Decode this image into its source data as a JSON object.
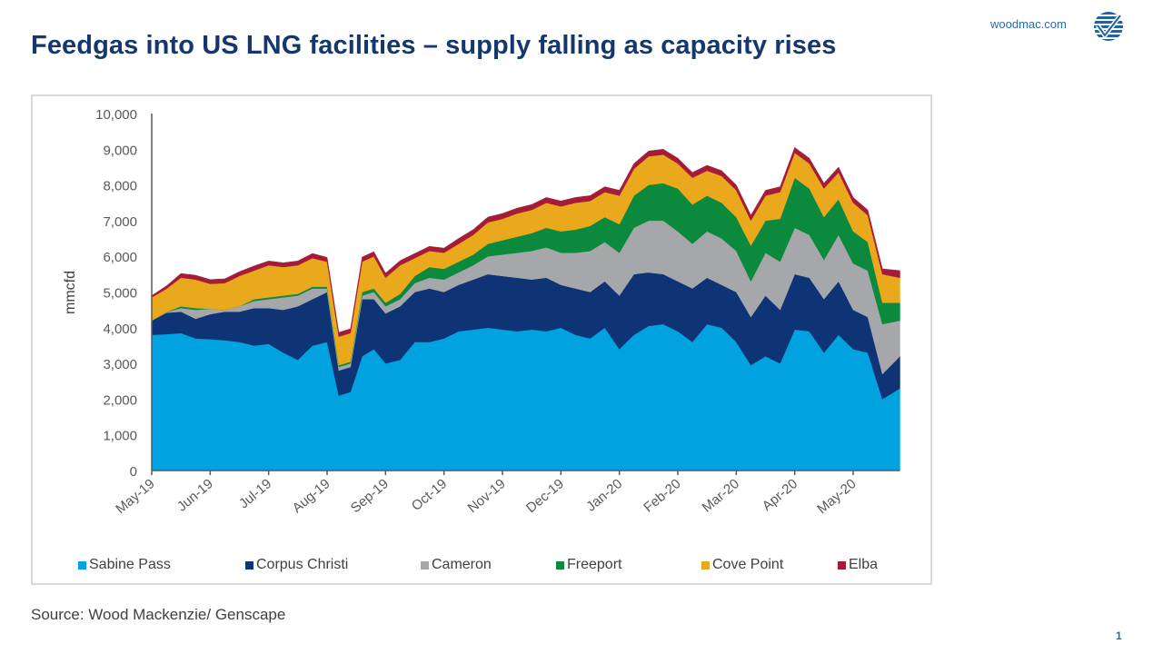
{
  "header": {
    "title": "Feedgas into US LNG facilities – supply falling as capacity rises",
    "site": "woodmac.com",
    "logo_icon": "woodmac-checkmark-logo"
  },
  "footer": {
    "source": "Source: Wood Mackenzie/ Genscape",
    "page_number": "1"
  },
  "chart_data": {
    "type": "area",
    "stacked": true,
    "title": "",
    "xlabel": "",
    "ylabel": "mmcfd",
    "ylim": [
      0,
      10000
    ],
    "yticks": [
      0,
      1000,
      2000,
      3000,
      4000,
      5000,
      6000,
      7000,
      8000,
      9000,
      10000
    ],
    "ytick_labels": [
      "0",
      "1,000",
      "2,000",
      "3,000",
      "4,000",
      "5,000",
      "6,000",
      "7,000",
      "8,000",
      "9,000",
      "10,000"
    ],
    "xtick_labels": [
      "May-19",
      "Jun-19",
      "Jul-19",
      "Aug-19",
      "Sep-19",
      "Oct-19",
      "Nov-19",
      "Dec-19",
      "Jan-20",
      "Feb-20",
      "Mar-20",
      "Apr-20",
      "May-20"
    ],
    "x_unit": "months since May-19",
    "xlim": [
      0,
      12.8
    ],
    "grid": false,
    "legend_position": "bottom",
    "x": [
      0,
      0.25,
      0.5,
      0.75,
      1.0,
      1.25,
      1.5,
      1.75,
      2.0,
      2.25,
      2.5,
      2.75,
      3.0,
      3.2,
      3.4,
      3.6,
      3.8,
      4.0,
      4.25,
      4.5,
      4.75,
      5.0,
      5.25,
      5.5,
      5.75,
      6.0,
      6.25,
      6.5,
      6.75,
      7.0,
      7.25,
      7.5,
      7.75,
      8.0,
      8.25,
      8.5,
      8.75,
      9.0,
      9.25,
      9.5,
      9.75,
      10.0,
      10.25,
      10.5,
      10.75,
      11.0,
      11.25,
      11.5,
      11.75,
      12.0,
      12.25,
      12.5,
      12.8
    ],
    "series": [
      {
        "name": "Sabine Pass",
        "color": "#00a3e0",
        "values": [
          3800,
          3820,
          3850,
          3700,
          3680,
          3650,
          3600,
          3500,
          3550,
          3300,
          3100,
          3500,
          3600,
          2100,
          2200,
          3200,
          3400,
          3000,
          3100,
          3600,
          3600,
          3700,
          3900,
          3950,
          4000,
          3950,
          3900,
          3950,
          3900,
          4000,
          3800,
          3700,
          4000,
          3400,
          3800,
          4050,
          4100,
          3900,
          3600,
          4100,
          4000,
          3600,
          2950,
          3200,
          3000,
          3950,
          3900,
          3300,
          3800,
          3400,
          3300,
          2000,
          2300
        ]
      },
      {
        "name": "Corpus Christi",
        "color": "#0f3475",
        "values": [
          400,
          600,
          600,
          550,
          700,
          800,
          850,
          1050,
          1000,
          1200,
          1500,
          1300,
          1400,
          700,
          700,
          1600,
          1400,
          1400,
          1500,
          1400,
          1500,
          1300,
          1300,
          1400,
          1500,
          1500,
          1500,
          1400,
          1500,
          1200,
          1300,
          1300,
          1300,
          1500,
          1700,
          1500,
          1400,
          1400,
          1500,
          1300,
          1200,
          1400,
          1350,
          1700,
          1500,
          1550,
          1500,
          1500,
          1500,
          1100,
          1000,
          700,
          900
        ]
      },
      {
        "name": "Cameron",
        "color": "#a6a7ab",
        "values": [
          0,
          20,
          100,
          250,
          150,
          50,
          150,
          200,
          250,
          350,
          300,
          300,
          100,
          100,
          100,
          100,
          200,
          200,
          200,
          250,
          300,
          350,
          350,
          400,
          500,
          600,
          700,
          800,
          850,
          900,
          1000,
          1150,
          1100,
          1200,
          1300,
          1450,
          1500,
          1400,
          1250,
          1300,
          1300,
          1150,
          1000,
          1200,
          1350,
          1300,
          1200,
          1100,
          1300,
          1300,
          1300,
          1400,
          1000
        ]
      },
      {
        "name": "Freeport",
        "color": "#0b8a3e",
        "values": [
          0,
          0,
          50,
          50,
          0,
          0,
          0,
          50,
          50,
          50,
          50,
          50,
          50,
          50,
          50,
          100,
          100,
          100,
          150,
          200,
          300,
          300,
          300,
          300,
          350,
          400,
          450,
          500,
          550,
          600,
          650,
          700,
          700,
          800,
          900,
          1000,
          1050,
          1200,
          1100,
          1000,
          1000,
          950,
          1000,
          900,
          1200,
          1400,
          1300,
          1200,
          1000,
          900,
          800,
          600,
          500
        ]
      },
      {
        "name": "Cove Point",
        "color": "#eaa81c",
        "values": [
          650,
          650,
          800,
          800,
          700,
          750,
          850,
          800,
          900,
          800,
          800,
          800,
          700,
          800,
          800,
          850,
          900,
          700,
          800,
          500,
          450,
          450,
          500,
          550,
          600,
          600,
          650,
          650,
          700,
          700,
          750,
          700,
          700,
          800,
          750,
          800,
          800,
          700,
          750,
          700,
          750,
          750,
          700,
          700,
          750,
          700,
          700,
          800,
          750,
          800,
          750,
          800,
          700
        ]
      },
      {
        "name": "Elba",
        "color": "#a51c38",
        "values": [
          50,
          80,
          120,
          120,
          120,
          120,
          120,
          130,
          120,
          120,
          120,
          130,
          120,
          120,
          120,
          130,
          130,
          130,
          130,
          130,
          130,
          130,
          150,
          150,
          150,
          150,
          150,
          150,
          150,
          150,
          150,
          150,
          150,
          150,
          150,
          150,
          150,
          150,
          150,
          150,
          150,
          150,
          150,
          150,
          150,
          150,
          150,
          150,
          150,
          150,
          150,
          150,
          200
        ]
      }
    ]
  }
}
